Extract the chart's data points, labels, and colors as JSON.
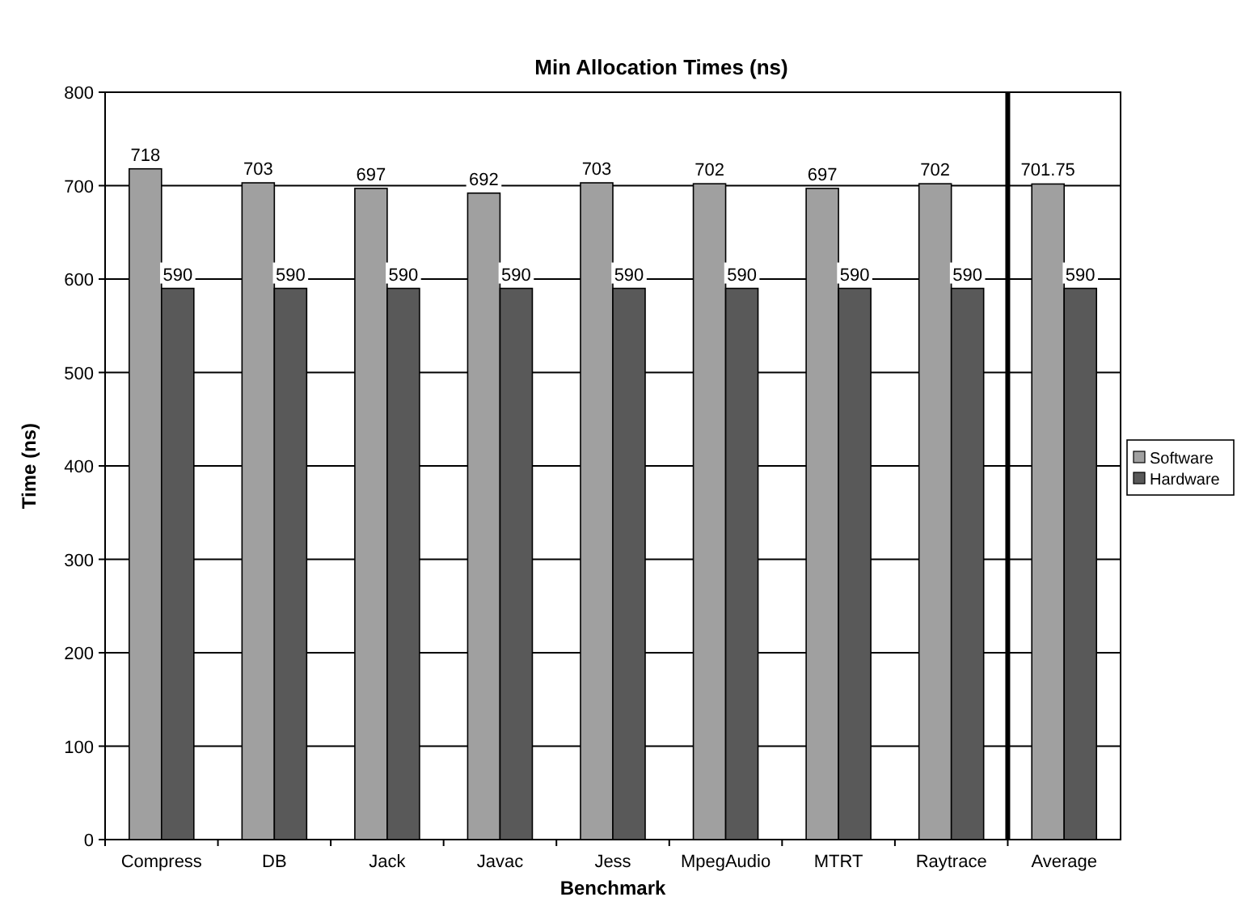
{
  "chart_data": {
    "type": "bar",
    "title": "Min Allocation Times (ns)",
    "xlabel": "Benchmark",
    "ylabel": "Time (ns)",
    "categories": [
      "Compress",
      "DB",
      "Jack",
      "Javac",
      "Jess",
      "MpegAudio",
      "MTRT",
      "Raytrace",
      "Average"
    ],
    "series": [
      {
        "name": "Software",
        "color": "#a0a0a0",
        "values": [
          718,
          703,
          697,
          692,
          703,
          702,
          697,
          702,
          701.75
        ]
      },
      {
        "name": "Hardware",
        "color": "#595959",
        "values": [
          590,
          590,
          590,
          590,
          590,
          590,
          590,
          590,
          590
        ]
      }
    ],
    "ylim": [
      0,
      800
    ],
    "yticks": [
      0,
      100,
      200,
      300,
      400,
      500,
      600,
      700,
      800
    ],
    "grid": "y",
    "legend": "right",
    "data_labels": true,
    "ref_lines": [
      {
        "axis": "x",
        "value": "Average",
        "color": "#000000"
      }
    ]
  }
}
